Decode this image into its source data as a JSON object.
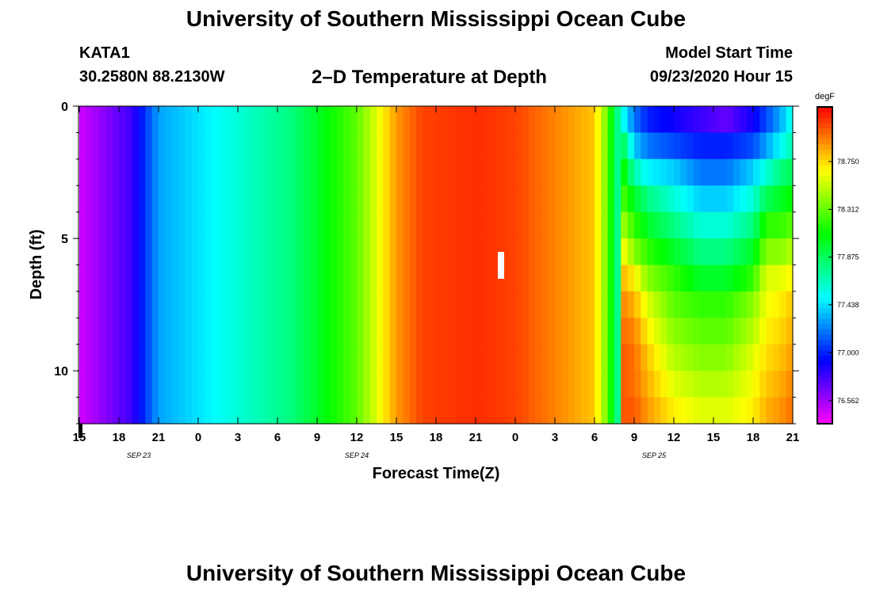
{
  "header": {
    "title": "University of Southern Mississippi Ocean Cube",
    "station_id": "KATA1",
    "station_coords": "30.2580N 88.2130W",
    "product": "2–D Temperature at Depth",
    "start_label": "Model Start Time",
    "start_value": "09/23/2020 Hour 15"
  },
  "footer": {
    "title": "University of Southern Mississippi Ocean Cube"
  },
  "chart_data": {
    "type": "heatmap",
    "title": "2–D Temperature at Depth",
    "xlabel": "Forecast Time(Z)",
    "ylabel": "Depth (ft)",
    "x_tick_labels": [
      "15",
      "18",
      "21",
      "0",
      "3",
      "6",
      "9",
      "12",
      "15",
      "18",
      "21",
      "0",
      "3",
      "6",
      "9",
      "12",
      "15",
      "18",
      "21"
    ],
    "date_labels": [
      {
        "label": "SEP 23",
        "tick_index": 1.5
      },
      {
        "label": "SEP 24",
        "tick_index": 7
      },
      {
        "label": "SEP 25",
        "tick_index": 14.5
      }
    ],
    "forecast_hours_range": [
      0,
      54
    ],
    "y_ticks": [
      0,
      5,
      10
    ],
    "ylim": [
      0,
      12
    ],
    "y_inverted": true,
    "colorbar": {
      "unit": "degF",
      "range": [
        76.35,
        79.25
      ],
      "tick_values": [
        76.562,
        77.0,
        77.438,
        77.875,
        78.312,
        78.75
      ],
      "tick_labels": [
        "76.562",
        "77.000",
        "77.438",
        "77.875",
        "78.312",
        "78.750"
      ]
    },
    "depth_levels_ft": [
      0.5,
      1.5,
      2.5,
      3.5,
      4.5,
      5.5,
      6.5,
      7.5,
      8.5,
      9.5,
      10.5,
      11.5
    ],
    "surface_profile": {
      "hours": [
        0,
        4,
        6,
        12,
        16,
        21,
        24,
        26,
        30,
        33,
        36,
        39,
        40,
        41
      ],
      "temps_degF": [
        76.45,
        76.8,
        77.3,
        77.6,
        77.8,
        78.3,
        78.9,
        79.1,
        79.15,
        79.1,
        78.95,
        78.8,
        78.3,
        77.6
      ]
    },
    "late_period": {
      "hours": [
        41,
        42,
        43,
        45,
        47,
        49,
        51,
        52,
        53,
        54
      ],
      "depth_temps_degF": [
        [
          77.6,
          77.2,
          77.0,
          76.9,
          76.8,
          76.7,
          76.9,
          77.1,
          77.3,
          77.6
        ],
        [
          78.0,
          77.4,
          77.2,
          77.1,
          77.0,
          77.0,
          77.1,
          77.3,
          77.5,
          77.7
        ],
        [
          78.2,
          77.7,
          77.5,
          77.4,
          77.2,
          77.2,
          77.4,
          77.6,
          77.8,
          77.9
        ],
        [
          78.3,
          78.0,
          77.8,
          77.6,
          77.4,
          77.4,
          77.6,
          77.9,
          78.0,
          78.1
        ],
        [
          78.5,
          78.2,
          78.0,
          77.8,
          77.6,
          77.6,
          77.8,
          78.2,
          78.2,
          78.3
        ],
        [
          78.7,
          78.4,
          78.2,
          78.0,
          77.8,
          77.8,
          78.0,
          78.4,
          78.4,
          78.5
        ],
        [
          78.85,
          78.7,
          78.4,
          78.2,
          78.0,
          78.0,
          78.2,
          78.6,
          78.6,
          78.7
        ],
        [
          78.95,
          78.85,
          78.6,
          78.3,
          78.2,
          78.2,
          78.4,
          78.65,
          78.7,
          78.8
        ],
        [
          79.0,
          78.95,
          78.7,
          78.4,
          78.3,
          78.3,
          78.5,
          78.7,
          78.75,
          78.85
        ],
        [
          79.05,
          79.0,
          78.8,
          78.5,
          78.4,
          78.4,
          78.6,
          78.75,
          78.8,
          78.9
        ],
        [
          79.05,
          79.0,
          78.85,
          78.6,
          78.5,
          78.5,
          78.65,
          78.8,
          78.85,
          78.95
        ],
        [
          79.05,
          79.05,
          78.9,
          78.7,
          78.6,
          78.6,
          78.7,
          78.85,
          78.9,
          79.0
        ]
      ]
    }
  }
}
